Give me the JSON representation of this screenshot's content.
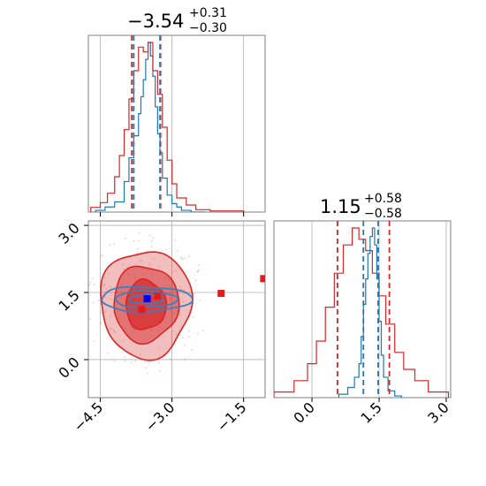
{
  "chart_data": [
    {
      "panel": "marginal-x",
      "type": "histogram",
      "title_value": "−3.54",
      "title_upper": "+0.31",
      "title_lower": "−0.30",
      "xlim": [
        -4.75,
        -1.05
      ],
      "grid": true,
      "series": [
        {
          "name": "",
          "color": "#1f77b4",
          "bin_edges": [
            -4.6,
            -4.4,
            -4.2,
            -4.0,
            -3.9,
            -3.8,
            -3.7,
            -3.65,
            -3.6,
            -3.55,
            -3.5,
            -3.45,
            -3.4,
            -3.35,
            -3.3,
            -3.25,
            -3.2,
            -3.1,
            -3.0,
            -2.9,
            -2.8,
            -2.6,
            -2.3
          ],
          "counts": [
            0.01,
            0.03,
            0.06,
            0.18,
            0.32,
            0.45,
            0.58,
            0.68,
            0.78,
            0.9,
            1.0,
            0.92,
            0.8,
            0.62,
            0.46,
            0.35,
            0.2,
            0.1,
            0.05,
            0.03,
            0.01,
            0.0
          ]
        },
        {
          "name": "",
          "color": "#d62728",
          "bin_edges": [
            -4.7,
            -4.5,
            -4.35,
            -4.2,
            -4.1,
            -4.0,
            -3.9,
            -3.8,
            -3.7,
            -3.6,
            -3.5,
            -3.4,
            -3.3,
            -3.2,
            -3.1,
            -3.0,
            -2.9,
            -2.7,
            -2.5,
            -2.2,
            -1.5
          ],
          "counts": [
            0.02,
            0.04,
            0.08,
            0.15,
            0.24,
            0.35,
            0.48,
            0.6,
            0.7,
            0.68,
            0.72,
            0.6,
            0.5,
            0.36,
            0.22,
            0.12,
            0.06,
            0.03,
            0.01,
            0.005
          ]
        }
      ],
      "quantile_lines": [
        {
          "x": -3.84,
          "color": "#d62728"
        },
        {
          "x": -3.24,
          "color": "#d62728"
        },
        {
          "x": -3.8,
          "color": "#1f77b4"
        },
        {
          "x": -3.25,
          "color": "#1f77b4"
        }
      ]
    },
    {
      "panel": "joint",
      "type": "contour",
      "xlim": [
        -4.75,
        -1.05
      ],
      "ylim": [
        -0.85,
        3.1
      ],
      "grid": true,
      "x_ticks": [
        -4.5,
        -3.0,
        -1.5
      ],
      "x_tick_labels": [
        "−4.5",
        "−3.0",
        "−1.5"
      ],
      "y_ticks": [
        0.0,
        1.5,
        3.0
      ],
      "y_tick_labels": [
        "0.0",
        "1.5",
        "3.0"
      ],
      "red_levels": [
        {
          "cx": -3.55,
          "cy": 1.25,
          "rx": 0.95,
          "ry": 1.2,
          "opacity": 0.3
        },
        {
          "cx": -3.55,
          "cy": 1.25,
          "rx": 0.68,
          "ry": 0.85,
          "opacity": 0.5
        },
        {
          "cx": -3.55,
          "cy": 1.22,
          "rx": 0.42,
          "ry": 0.55,
          "opacity": 0.7
        }
      ],
      "blue_levels": [
        {
          "cx": -3.55,
          "cy": 1.35,
          "rx": 0.95,
          "ry": 0.28
        },
        {
          "cx": -3.55,
          "cy": 1.35,
          "rx": 0.65,
          "ry": 0.18
        },
        {
          "cx": -3.55,
          "cy": 1.35,
          "rx": 0.35,
          "ry": 0.1
        }
      ],
      "red_points": [
        {
          "x": -3.63,
          "y": 1.12
        },
        {
          "x": -3.3,
          "y": 1.42
        },
        {
          "x": -1.97,
          "y": 1.48
        },
        {
          "x": -1.08,
          "y": 1.81
        }
      ],
      "blue_points": [
        {
          "x": -3.52,
          "y": 1.36
        }
      ]
    },
    {
      "panel": "marginal-y",
      "type": "histogram",
      "title_value": "1.15",
      "title_upper": "+0.58",
      "title_lower": "−0.58",
      "xlim": [
        -0.85,
        3.1
      ],
      "grid": true,
      "x_ticks": [
        0.0,
        1.5,
        3.0
      ],
      "x_tick_labels": [
        "0.0",
        "1.5",
        "3.0"
      ],
      "series": [
        {
          "name": "",
          "color": "#1f77b4",
          "bin_edges": [
            0.6,
            0.8,
            0.95,
            1.05,
            1.1,
            1.15,
            1.2,
            1.25,
            1.3,
            1.35,
            1.4,
            1.45,
            1.5,
            1.55,
            1.6,
            1.7,
            1.85,
            2.0
          ],
          "counts": [
            0.02,
            0.06,
            0.12,
            0.2,
            0.36,
            0.55,
            0.7,
            0.85,
            0.95,
            1.0,
            0.9,
            0.7,
            0.45,
            0.25,
            0.12,
            0.04,
            0.01
          ]
        },
        {
          "name": "",
          "color": "#d62728",
          "bin_edges": [
            -0.85,
            -0.4,
            -0.1,
            0.1,
            0.3,
            0.5,
            0.7,
            0.9,
            1.05,
            1.2,
            1.35,
            1.5,
            1.65,
            1.85,
            2.05,
            2.3,
            2.6,
            3.05
          ],
          "counts": [
            0.01,
            0.03,
            0.06,
            0.1,
            0.16,
            0.22,
            0.27,
            0.3,
            0.28,
            0.26,
            0.22,
            0.18,
            0.13,
            0.08,
            0.05,
            0.03,
            0.01
          ]
        }
      ],
      "quantile_lines": [
        {
          "x": 0.57,
          "color": "#d62728"
        },
        {
          "x": 1.73,
          "color": "#d62728"
        },
        {
          "x": 1.15,
          "color": "#1f77b4"
        },
        {
          "x": 1.48,
          "color": "#1f77b4"
        }
      ]
    }
  ]
}
